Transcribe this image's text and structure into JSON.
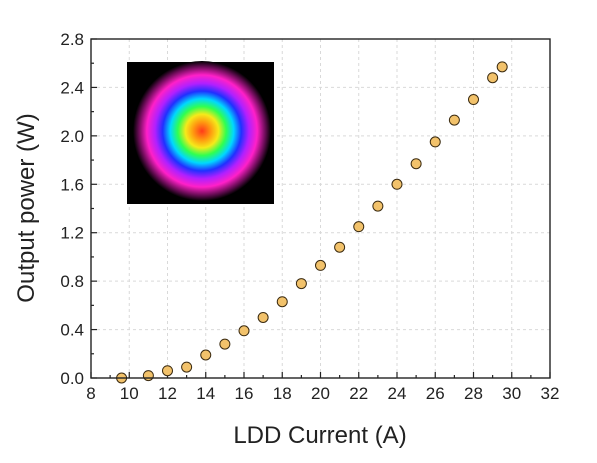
{
  "chart_data": {
    "type": "scatter",
    "xlabel": "LDD Current (A)",
    "ylabel": "Output power (W)",
    "xlim": [
      8,
      32
    ],
    "ylim": [
      0.0,
      2.8
    ],
    "x_ticks": [
      8,
      10,
      12,
      14,
      16,
      18,
      20,
      22,
      24,
      26,
      28,
      30,
      32
    ],
    "x_tick_labels": [
      "8",
      "10",
      "12",
      "14",
      "16",
      "18",
      "20",
      "22",
      "24",
      "26",
      "28",
      "30",
      "32"
    ],
    "y_ticks": [
      0.0,
      0.4,
      0.8,
      1.2,
      1.6,
      2.0,
      2.4,
      2.8
    ],
    "y_tick_labels": [
      "0.0",
      "0.4",
      "0.8",
      "1.2",
      "1.6",
      "2.0",
      "2.4",
      "2.8"
    ],
    "grid": true,
    "marker_color": "#f2c26b",
    "marker_edge_color": "#3a2a10",
    "inset": {
      "type": "beam-profile-image",
      "position": "top-left"
    },
    "series": [
      {
        "x": [
          9.6,
          11,
          12,
          13,
          14,
          15,
          16,
          17,
          18,
          19,
          20,
          21,
          22,
          23,
          24,
          25,
          26,
          27,
          28,
          29,
          29.5
        ],
        "y": [
          0.0,
          0.02,
          0.06,
          0.09,
          0.19,
          0.28,
          0.39,
          0.5,
          0.63,
          0.78,
          0.93,
          1.08,
          1.25,
          1.42,
          1.6,
          1.77,
          1.95,
          2.13,
          2.3,
          2.48,
          2.57
        ]
      }
    ]
  }
}
